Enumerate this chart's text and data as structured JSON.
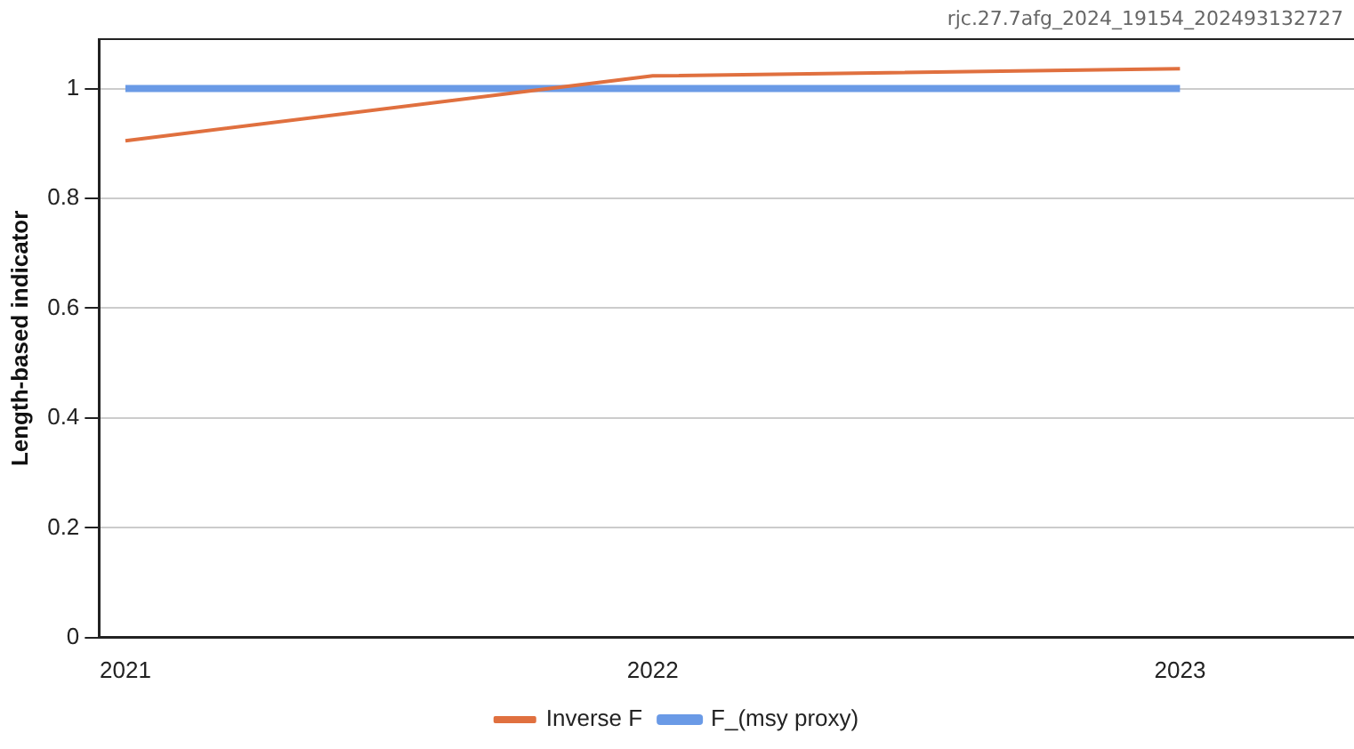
{
  "chart_data": {
    "type": "line",
    "ylabel": "Length-based indicator",
    "annotations": [
      "rjc.27.7afg_2024_19154_202493132727"
    ],
    "x": [
      2021,
      2022,
      2023
    ],
    "series": [
      {
        "name": "Inverse F",
        "color": "#e0703f",
        "values": [
          0.905,
          1.023,
          1.036
        ]
      },
      {
        "name": "F_(msy proxy)",
        "color": "#6a9ae6",
        "values": [
          1,
          1,
          1
        ]
      }
    ],
    "xlim": [
      2020.95,
      2023.33
    ],
    "xticks": [
      2021,
      2022,
      2023
    ],
    "ylim": [
      0,
      1.09
    ],
    "yticks": [
      0,
      0.2,
      0.4,
      0.6,
      0.8,
      1
    ],
    "grid": "y",
    "legend": "bottom",
    "marker": "none",
    "line_style": "solid"
  }
}
